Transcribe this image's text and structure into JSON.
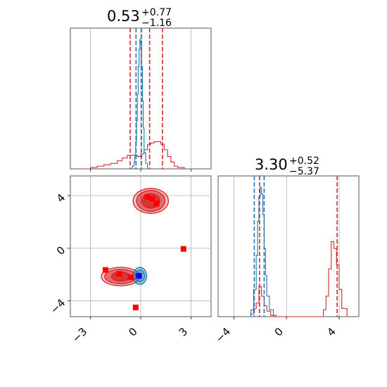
{
  "chart_data": [
    {
      "type": "histogram",
      "panel": "marginal-x",
      "title": {
        "value": "0.53",
        "plus": "+0.77",
        "minus": "−1.16"
      },
      "xlim": [
        -4.2,
        4.2
      ],
      "xticks": [
        -3,
        0,
        3
      ],
      "grid": true,
      "vlines": {
        "red": [
          -0.63,
          0.53,
          1.3
        ],
        "blue": [
          -0.28,
          0.05
        ]
      },
      "series": [
        {
          "color": "#d62728",
          "x": [
            -3.5,
            -3.0,
            -2.6,
            -2.2,
            -1.8,
            -1.4,
            -1.1,
            -0.8,
            -0.5,
            -0.2,
            0.0,
            0.2,
            0.4,
            0.6,
            0.8,
            1.0,
            1.2,
            1.4,
            1.6,
            1.8,
            2.0,
            2.2,
            2.6
          ],
          "density": [
            0.0,
            0.01,
            0.02,
            0.03,
            0.04,
            0.06,
            0.08,
            0.1,
            0.1,
            0.09,
            0.11,
            0.14,
            0.18,
            0.19,
            0.2,
            0.2,
            0.18,
            0.14,
            0.09,
            0.05,
            0.02,
            0.01,
            0.0
          ]
        },
        {
          "color": "#1f77b4",
          "x": [
            -0.6,
            -0.5,
            -0.4,
            -0.35,
            -0.3,
            -0.25,
            -0.2,
            -0.15,
            -0.1,
            -0.05,
            0.0,
            0.05,
            0.1,
            0.15,
            0.2,
            0.3,
            0.4
          ],
          "density": [
            0.0,
            0.02,
            0.05,
            0.1,
            0.2,
            0.35,
            0.55,
            0.75,
            0.88,
            0.95,
            0.92,
            0.75,
            0.5,
            0.3,
            0.12,
            0.04,
            0.0
          ]
        }
      ]
    },
    {
      "type": "scatter-contour",
      "panel": "joint",
      "xlim": [
        -4.2,
        4.2
      ],
      "ylim": [
        -5.2,
        5.5
      ],
      "xticks": [
        -3,
        0,
        3
      ],
      "yticks": [
        -4,
        0,
        4
      ],
      "grid": true,
      "contours": [
        {
          "color": "#d62728",
          "center": [
            0.6,
            3.6
          ],
          "radii": [
            [
              1.05,
              0.95
            ],
            [
              0.85,
              0.8
            ],
            [
              0.55,
              0.55
            ]
          ]
        },
        {
          "color": "#d62728",
          "center": [
            -1.2,
            -2.15
          ],
          "radii": [
            [
              1.15,
              0.7
            ],
            [
              0.95,
              0.55
            ],
            [
              0.55,
              0.35
            ]
          ]
        },
        {
          "color": "#1f77b4",
          "center": [
            -0.05,
            -2.1
          ],
          "radii": [
            [
              0.4,
              0.65
            ],
            [
              0.28,
              0.45
            ]
          ]
        }
      ],
      "points_red": [
        [
          0.7,
          3.75
        ],
        [
          0.95,
          3.4
        ],
        [
          2.55,
          -0.05
        ],
        [
          -2.1,
          -1.65
        ],
        [
          -0.6,
          -2.2
        ],
        [
          -0.3,
          -4.5
        ],
        [
          -1.3,
          -1.95
        ],
        [
          0.4,
          3.9
        ]
      ],
      "points_blue": [
        [
          -0.1,
          -2.1
        ]
      ]
    },
    {
      "type": "histogram",
      "panel": "marginal-y",
      "title": {
        "value": "3.30",
        "plus": "+0.52",
        "minus": "−5.37"
      },
      "xlim": [
        -5.2,
        5.5
      ],
      "xticks": [
        -4,
        0,
        4
      ],
      "grid": true,
      "vlines": {
        "red": [
          -2.05,
          3.85
        ],
        "blue": [
          -2.45,
          -1.7
        ]
      },
      "series": [
        {
          "color": "#d62728",
          "x": [
            -3.0,
            -2.7,
            -2.5,
            -2.3,
            -2.1,
            -1.9,
            -1.7,
            -1.5,
            -1.2,
            -0.8,
            2.6,
            2.8,
            3.0,
            3.2,
            3.4,
            3.6,
            3.8,
            4.0,
            4.2,
            4.6
          ],
          "density": [
            0.0,
            0.02,
            0.06,
            0.1,
            0.22,
            0.15,
            0.08,
            0.04,
            0.01,
            0.0,
            0.0,
            0.05,
            0.15,
            0.35,
            0.55,
            0.5,
            0.38,
            0.2,
            0.06,
            0.0
          ]
        },
        {
          "color": "#1f77b4",
          "x": [
            -3.0,
            -2.7,
            -2.5,
            -2.3,
            -2.2,
            -2.1,
            -2.0,
            -1.9,
            -1.8,
            -1.7,
            -1.6,
            -1.5,
            -1.3,
            -1.0
          ],
          "density": [
            0.0,
            0.05,
            0.2,
            0.45,
            0.7,
            0.88,
            0.95,
            0.9,
            0.75,
            0.5,
            0.3,
            0.15,
            0.05,
            0.0
          ]
        }
      ]
    }
  ]
}
